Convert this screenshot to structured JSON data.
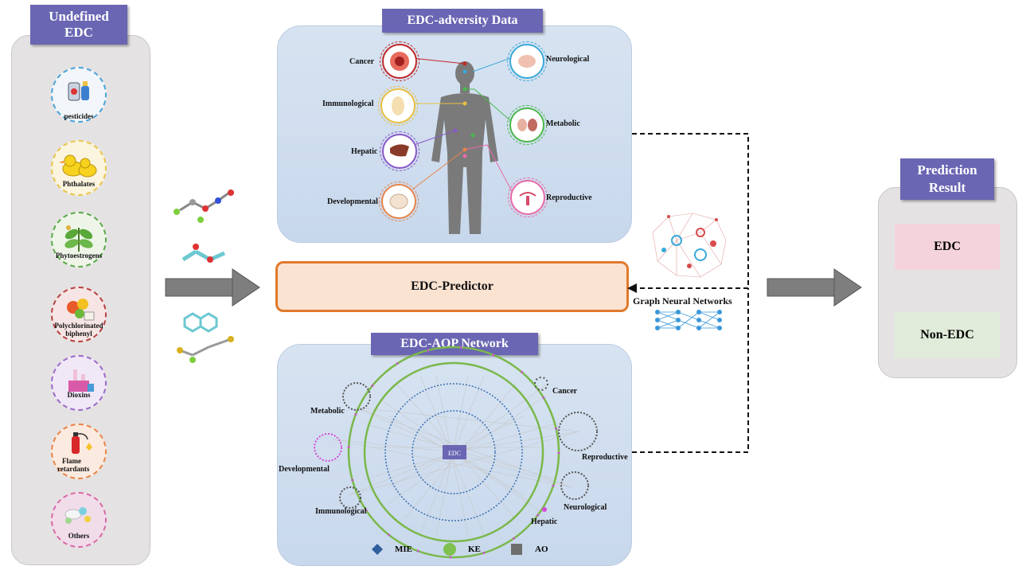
{
  "left": {
    "title_line1": "Undefined",
    "title_line2": "EDC",
    "categories": [
      "pesticides",
      "Phthalates",
      "Phytoestrogens",
      "Polychlorinated biphenyl",
      "Dioxins",
      "Flame retardants",
      "Others"
    ]
  },
  "adversity": {
    "title": "EDC-adversity Data",
    "labels": {
      "cancer": "Cancer",
      "neurological": "Neurological",
      "immunological": "Immunological",
      "metabolic": "Metabolic",
      "hepatic": "Hepatic",
      "developmental": "Developmental",
      "reproductive": "Reproductive"
    }
  },
  "predictor": {
    "label": "EDC-Predictor"
  },
  "gnn": {
    "label": "Graph Neural Networks"
  },
  "aop": {
    "title": "EDC-AOP Network",
    "center_label": "EDC",
    "labels": {
      "cancer": "Cancer",
      "metabolic": "Metabolic",
      "developmental": "Developmental",
      "immunological": "Immunological",
      "reproductive": "Reproductive",
      "neurological": "Neurological",
      "hepatic": "Hepatic"
    },
    "legend": {
      "mie": "MIE",
      "ke": "KE",
      "ao": "AO"
    }
  },
  "result": {
    "title_line1": "Prediction",
    "title_line2": "Result",
    "edc": "EDC",
    "non_edc": "Non-EDC"
  },
  "colors": {
    "title_bg": "#6a66b3",
    "predictor_border": "#e07a2c",
    "predictor_fill": "#fbe3d2",
    "edc_fill": "#f5d3dc",
    "non_edc_fill": "#e0ecd9",
    "mie": "#2f5e9e",
    "ke": "#7ec14f",
    "ao": "#6e6e6e"
  }
}
